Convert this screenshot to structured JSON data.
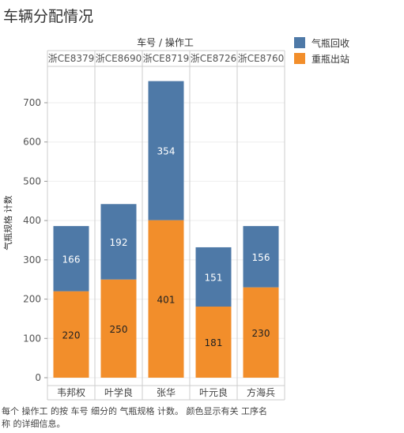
{
  "title": "车辆分配情况",
  "caption": "每个 操作工 的按 车号 细分的 气瓶规格 计数。 颜色显示有关 工序名称 的详细信息。",
  "legend": {
    "items": [
      {
        "label": "气瓶回收",
        "color": "#4e79a7"
      },
      {
        "label": "重瓶出站",
        "color": "#f28e2b"
      }
    ]
  },
  "chart_data": {
    "type": "bar",
    "stacked": true,
    "header_title": "车号 / 操作工",
    "ylabel": "气瓶规格 计数",
    "ylim": [
      0,
      750
    ],
    "yticks": [
      0,
      100,
      200,
      300,
      400,
      500,
      600,
      700
    ],
    "columns": [
      "浙CE8379",
      "浙CE8690",
      "浙CE8719",
      "浙CE8726",
      "浙CE8760"
    ],
    "categories": [
      "韦邦权",
      "叶学良",
      "张华",
      "叶元良",
      "方海兵"
    ],
    "series": [
      {
        "name": "重瓶出站",
        "color": "#f28e2b",
        "values": [
          220,
          250,
          401,
          181,
          230
        ]
      },
      {
        "name": "气瓶回收",
        "color": "#4e79a7",
        "values": [
          166,
          192,
          354,
          151,
          156
        ]
      }
    ]
  }
}
